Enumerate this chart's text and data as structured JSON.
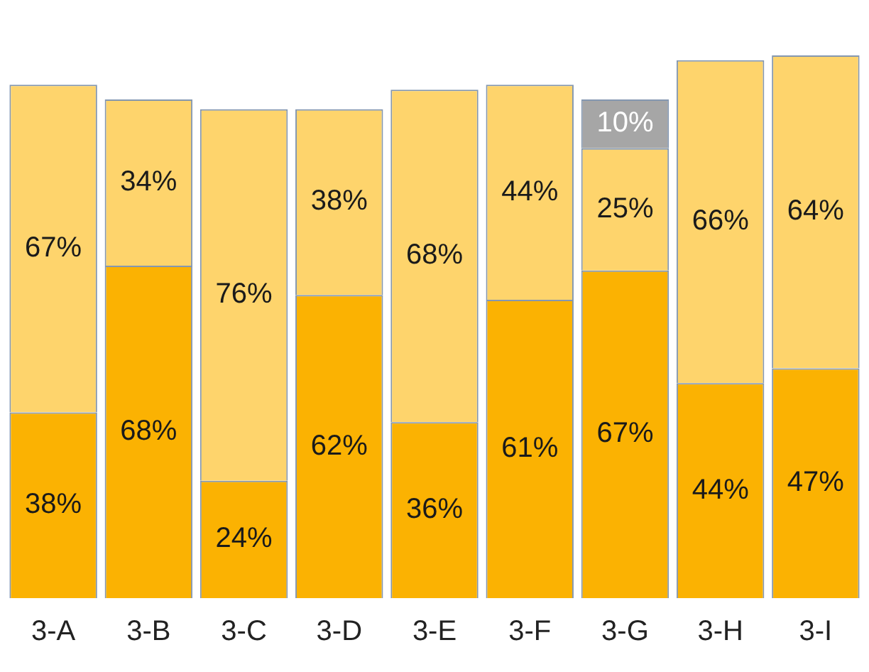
{
  "chart_data": {
    "type": "bar",
    "stacked": true,
    "legend": false,
    "grid": false,
    "tick_labels": "x",
    "categories": [
      "3-A",
      "3-B",
      "3-C",
      "3-D",
      "3-E",
      "3-F",
      "3-G",
      "3-H",
      "3-I"
    ],
    "series": [
      {
        "color": "#fbb202",
        "values": [
          38,
          68,
          24,
          62,
          36,
          61,
          67,
          44,
          47
        ],
        "value_labels": [
          "38%",
          "68%",
          "24%",
          "62%",
          "36%",
          "61%",
          "67%",
          "44%",
          "47%"
        ]
      },
      {
        "color": "#fed46c",
        "values": [
          67,
          34,
          76,
          38,
          68,
          44,
          25,
          66,
          64
        ],
        "value_labels": [
          "67%",
          "34%",
          "76%",
          "38%",
          "68%",
          "44%",
          "25%",
          "66%",
          "64%"
        ]
      },
      {
        "color": "#a6a6a6",
        "values": [
          null,
          null,
          null,
          null,
          null,
          null,
          10,
          null,
          null
        ],
        "value_labels": [
          null,
          null,
          null,
          null,
          null,
          null,
          "10%",
          null,
          null
        ]
      }
    ]
  }
}
